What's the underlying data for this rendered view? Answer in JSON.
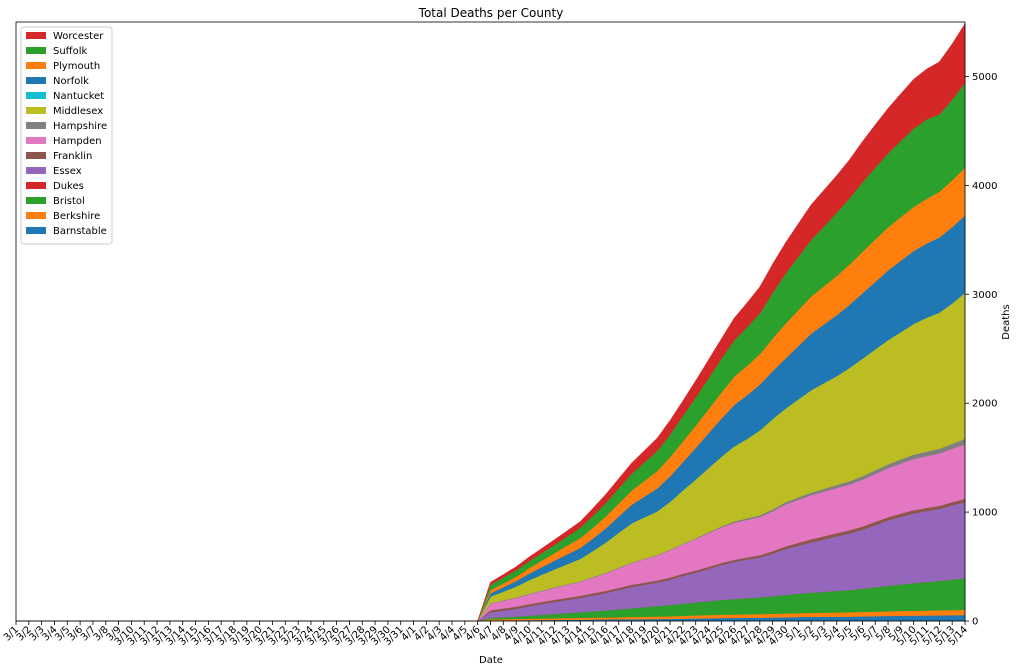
{
  "chart_data": {
    "type": "area",
    "stacked": true,
    "title": "Total Deaths per County",
    "xlabel": "Date",
    "ylabel": "Deaths",
    "ylim": [
      0,
      5500
    ],
    "y_ticks": [
      0,
      1000,
      2000,
      3000,
      4000,
      5000
    ],
    "y_axis_side": "right",
    "legend_position": "upper-left",
    "grid": false,
    "x": [
      "3/1",
      "3/2",
      "3/3",
      "3/4",
      "3/5",
      "3/6",
      "3/7",
      "3/8",
      "3/9",
      "3/10",
      "3/11",
      "3/12",
      "3/13",
      "3/14",
      "3/15",
      "3/16",
      "3/17",
      "3/18",
      "3/19",
      "3/20",
      "3/21",
      "3/22",
      "3/23",
      "3/24",
      "3/25",
      "3/26",
      "3/27",
      "3/28",
      "3/29",
      "3/30",
      "3/31",
      "4/1",
      "4/2",
      "4/3",
      "4/4",
      "4/5",
      "4/6",
      "4/7",
      "4/8",
      "4/9",
      "4/10",
      "4/11",
      "4/12",
      "4/13",
      "4/14",
      "4/15",
      "4/16",
      "4/17",
      "4/18",
      "4/19",
      "4/20",
      "4/21",
      "4/22",
      "4/23",
      "4/24",
      "4/25",
      "4/26",
      "4/27",
      "4/28",
      "4/29",
      "4/30",
      "5/1",
      "5/2",
      "5/3",
      "5/4",
      "5/5",
      "5/6",
      "5/7",
      "5/8",
      "5/9",
      "5/10",
      "5/11",
      "5/12",
      "5/13",
      "5/14"
    ],
    "series": [
      {
        "name": "Barnstable",
        "color": "#1f77b4",
        "values": [
          0,
          0,
          0,
          0,
          0,
          0,
          0,
          0,
          0,
          0,
          0,
          0,
          0,
          0,
          0,
          0,
          0,
          0,
          0,
          0,
          0,
          0,
          0,
          0,
          0,
          0,
          0,
          0,
          0,
          0,
          0,
          0,
          0,
          0,
          0,
          0,
          0,
          6,
          7,
          8,
          9,
          10,
          11,
          12,
          13,
          14,
          15,
          16,
          17,
          18,
          19,
          20,
          22,
          24,
          26,
          28,
          29,
          30,
          31,
          33,
          35,
          37,
          38,
          39,
          40,
          41,
          43,
          45,
          47,
          49,
          50,
          51,
          52,
          54,
          55
        ]
      },
      {
        "name": "Berkshire",
        "color": "#ff7f0e",
        "values": [
          0,
          0,
          0,
          0,
          0,
          0,
          0,
          0,
          0,
          0,
          0,
          0,
          0,
          0,
          0,
          0,
          0,
          0,
          0,
          0,
          0,
          0,
          0,
          0,
          0,
          0,
          0,
          0,
          0,
          0,
          0,
          0,
          0,
          0,
          0,
          0,
          0,
          10,
          11,
          12,
          13,
          14,
          15,
          16,
          17,
          18,
          19,
          20,
          21,
          22,
          23,
          24,
          26,
          28,
          29,
          30,
          31,
          32,
          33,
          34,
          35,
          36,
          37,
          38,
          39,
          40,
          41,
          42,
          43,
          44,
          45,
          46,
          47,
          48,
          49
        ]
      },
      {
        "name": "Bristol",
        "color": "#2ca02c",
        "values": [
          0,
          0,
          0,
          0,
          0,
          0,
          0,
          0,
          0,
          0,
          0,
          0,
          0,
          0,
          0,
          0,
          0,
          0,
          0,
          0,
          0,
          0,
          0,
          0,
          0,
          0,
          0,
          0,
          0,
          0,
          0,
          0,
          0,
          0,
          0,
          0,
          0,
          14,
          18,
          22,
          28,
          34,
          40,
          46,
          52,
          58,
          64,
          72,
          80,
          88,
          96,
          104,
          112,
          120,
          128,
          136,
          142,
          148,
          154,
          162,
          170,
          178,
          186,
          192,
          198,
          204,
          214,
          224,
          234,
          244,
          254,
          262,
          270,
          280,
          290
        ]
      },
      {
        "name": "Dukes",
        "color": "#d62728",
        "values": [
          0,
          0,
          0,
          0,
          0,
          0,
          0,
          0,
          0,
          0,
          0,
          0,
          0,
          0,
          0,
          0,
          0,
          0,
          0,
          0,
          0,
          0,
          0,
          0,
          0,
          0,
          0,
          0,
          0,
          0,
          0,
          0,
          0,
          0,
          0,
          0,
          0,
          0,
          0,
          0,
          0,
          0,
          0,
          0,
          0,
          0,
          0,
          0,
          0,
          0,
          0,
          0,
          0,
          0,
          0,
          0,
          0,
          0,
          0,
          0,
          0,
          0,
          0,
          0,
          0,
          0,
          0,
          0,
          0,
          0,
          0,
          0,
          0,
          0,
          0
        ]
      },
      {
        "name": "Essex",
        "color": "#9467bd",
        "values": [
          0,
          0,
          0,
          0,
          0,
          0,
          0,
          0,
          0,
          0,
          0,
          0,
          0,
          0,
          0,
          0,
          0,
          0,
          0,
          0,
          0,
          0,
          0,
          0,
          0,
          0,
          0,
          0,
          0,
          0,
          0,
          0,
          0,
          0,
          0,
          0,
          0,
          50,
          60,
          70,
          85,
          98,
          110,
          120,
          130,
          145,
          160,
          178,
          195,
          205,
          215,
          232,
          255,
          272,
          295,
          320,
          340,
          355,
          365,
          390,
          420,
          440,
          460,
          480,
          500,
          520,
          540,
          570,
          600,
          620,
          640,
          650,
          660,
          680,
          700
        ]
      },
      {
        "name": "Franklin",
        "color": "#8c564b",
        "values": [
          0,
          0,
          0,
          0,
          0,
          0,
          0,
          0,
          0,
          0,
          0,
          0,
          0,
          0,
          0,
          0,
          0,
          0,
          0,
          0,
          0,
          0,
          0,
          0,
          0,
          0,
          0,
          0,
          0,
          0,
          0,
          0,
          0,
          0,
          0,
          0,
          0,
          20,
          20,
          20,
          20,
          20,
          20,
          20,
          20,
          20,
          20,
          20,
          20,
          20,
          20,
          20,
          20,
          20,
          20,
          20,
          20,
          20,
          22,
          24,
          26,
          28,
          30,
          30,
          30,
          30,
          30,
          30,
          30,
          30,
          30,
          30,
          30,
          30,
          30
        ]
      },
      {
        "name": "Hampden",
        "color": "#e377c2",
        "values": [
          0,
          0,
          0,
          0,
          0,
          0,
          0,
          0,
          0,
          0,
          0,
          0,
          0,
          0,
          0,
          0,
          0,
          0,
          0,
          0,
          0,
          0,
          0,
          0,
          0,
          0,
          0,
          0,
          0,
          0,
          0,
          0,
          0,
          0,
          0,
          0,
          0,
          60,
          70,
          80,
          90,
          100,
          110,
          120,
          130,
          145,
          160,
          180,
          200,
          215,
          230,
          250,
          270,
          290,
          310,
          325,
          340,
          345,
          350,
          365,
          385,
          395,
          405,
          410,
          415,
          420,
          430,
          440,
          450,
          460,
          470,
          475,
          480,
          490,
          500
        ]
      },
      {
        "name": "Hampshire",
        "color": "#7f7f7f",
        "values": [
          0,
          0,
          0,
          0,
          0,
          0,
          0,
          0,
          0,
          0,
          0,
          0,
          0,
          0,
          0,
          0,
          0,
          0,
          0,
          0,
          0,
          0,
          0,
          0,
          0,
          0,
          0,
          0,
          0,
          0,
          0,
          0,
          0,
          0,
          0,
          0,
          0,
          5,
          5,
          5,
          5,
          5,
          5,
          5,
          5,
          5,
          5,
          5,
          5,
          5,
          5,
          5,
          5,
          6,
          8,
          10,
          12,
          14,
          16,
          18,
          20,
          22,
          24,
          26,
          28,
          30,
          32,
          34,
          36,
          38,
          40,
          42,
          44,
          46,
          50
        ]
      },
      {
        "name": "Middlesex",
        "color": "#bcbd22",
        "values": [
          0,
          0,
          0,
          0,
          0,
          0,
          0,
          0,
          0,
          0,
          0,
          0,
          0,
          0,
          0,
          0,
          0,
          0,
          0,
          0,
          0,
          0,
          0,
          0,
          0,
          0,
          0,
          0,
          0,
          0,
          0,
          0,
          0,
          0,
          0,
          0,
          0,
          60,
          80,
          100,
          125,
          145,
          165,
          185,
          205,
          240,
          280,
          320,
          360,
          380,
          400,
          440,
          490,
          540,
          590,
          640,
          690,
          730,
          780,
          830,
          860,
          900,
          940,
          970,
          1000,
          1040,
          1080,
          1110,
          1140,
          1170,
          1200,
          1230,
          1250,
          1290,
          1340
        ]
      },
      {
        "name": "Nantucket",
        "color": "#17becf",
        "values": [
          0,
          0,
          0,
          0,
          0,
          0,
          0,
          0,
          0,
          0,
          0,
          0,
          0,
          0,
          0,
          0,
          0,
          0,
          0,
          0,
          0,
          0,
          0,
          0,
          0,
          0,
          0,
          0,
          0,
          0,
          0,
          0,
          0,
          0,
          0,
          0,
          0,
          0,
          0,
          0,
          0,
          0,
          0,
          0,
          0,
          0,
          0,
          0,
          0,
          0,
          0,
          0,
          0,
          0,
          0,
          0,
          0,
          0,
          0,
          0,
          0,
          0,
          0,
          0,
          0,
          0,
          0,
          0,
          0,
          0,
          0,
          0,
          0,
          0,
          0
        ]
      },
      {
        "name": "Norfolk",
        "color": "#1f77b4",
        "values": [
          0,
          0,
          0,
          0,
          0,
          0,
          0,
          0,
          0,
          0,
          0,
          0,
          0,
          0,
          0,
          0,
          0,
          0,
          0,
          0,
          0,
          0,
          0,
          0,
          0,
          0,
          0,
          0,
          0,
          0,
          0,
          0,
          0,
          0,
          0,
          0,
          0,
          30,
          40,
          50,
          60,
          70,
          80,
          90,
          100,
          115,
          130,
          150,
          170,
          190,
          210,
          235,
          260,
          290,
          320,
          350,
          380,
          400,
          420,
          440,
          460,
          490,
          520,
          540,
          560,
          580,
          600,
          620,
          640,
          655,
          670,
          680,
          690,
          700,
          710
        ]
      },
      {
        "name": "Plymouth",
        "color": "#ff7f0e",
        "values": [
          0,
          0,
          0,
          0,
          0,
          0,
          0,
          0,
          0,
          0,
          0,
          0,
          0,
          0,
          0,
          0,
          0,
          0,
          0,
          0,
          0,
          0,
          0,
          0,
          0,
          0,
          0,
          0,
          0,
          0,
          0,
          0,
          0,
          0,
          0,
          0,
          0,
          30,
          35,
          40,
          50,
          60,
          70,
          80,
          90,
          100,
          110,
          120,
          130,
          145,
          160,
          175,
          190,
          205,
          220,
          240,
          260,
          270,
          280,
          300,
          320,
          330,
          340,
          350,
          360,
          370,
          380,
          390,
          395,
          400,
          405,
          410,
          420,
          430,
          440
        ]
      },
      {
        "name": "Suffolk",
        "color": "#2ca02c",
        "values": [
          0,
          0,
          0,
          0,
          0,
          0,
          0,
          0,
          0,
          0,
          0,
          0,
          0,
          0,
          0,
          0,
          0,
          0,
          0,
          0,
          0,
          0,
          0,
          0,
          0,
          0,
          0,
          0,
          0,
          0,
          0,
          0,
          0,
          0,
          0,
          0,
          0,
          50,
          55,
          60,
          65,
          70,
          75,
          85,
          95,
          110,
          125,
          140,
          155,
          170,
          185,
          210,
          235,
          260,
          285,
          310,
          335,
          355,
          375,
          420,
          460,
          490,
          520,
          550,
          580,
          610,
          640,
          660,
          680,
          700,
          720,
          730,
          710,
          740,
          780
        ]
      },
      {
        "name": "Worcester",
        "color": "#d62728",
        "values": [
          0,
          0,
          0,
          0,
          0,
          0,
          0,
          0,
          0,
          0,
          0,
          0,
          0,
          0,
          0,
          0,
          0,
          0,
          0,
          0,
          0,
          0,
          0,
          0,
          0,
          0,
          0,
          0,
          0,
          0,
          0,
          0,
          0,
          0,
          0,
          0,
          0,
          20,
          25,
          30,
          35,
          40,
          45,
          50,
          55,
          65,
          75,
          85,
          95,
          105,
          115,
          125,
          135,
          150,
          165,
          180,
          200,
          220,
          240,
          260,
          280,
          300,
          320,
          330,
          340,
          350,
          370,
          390,
          410,
          430,
          450,
          460,
          480,
          510,
          540
        ]
      }
    ]
  }
}
